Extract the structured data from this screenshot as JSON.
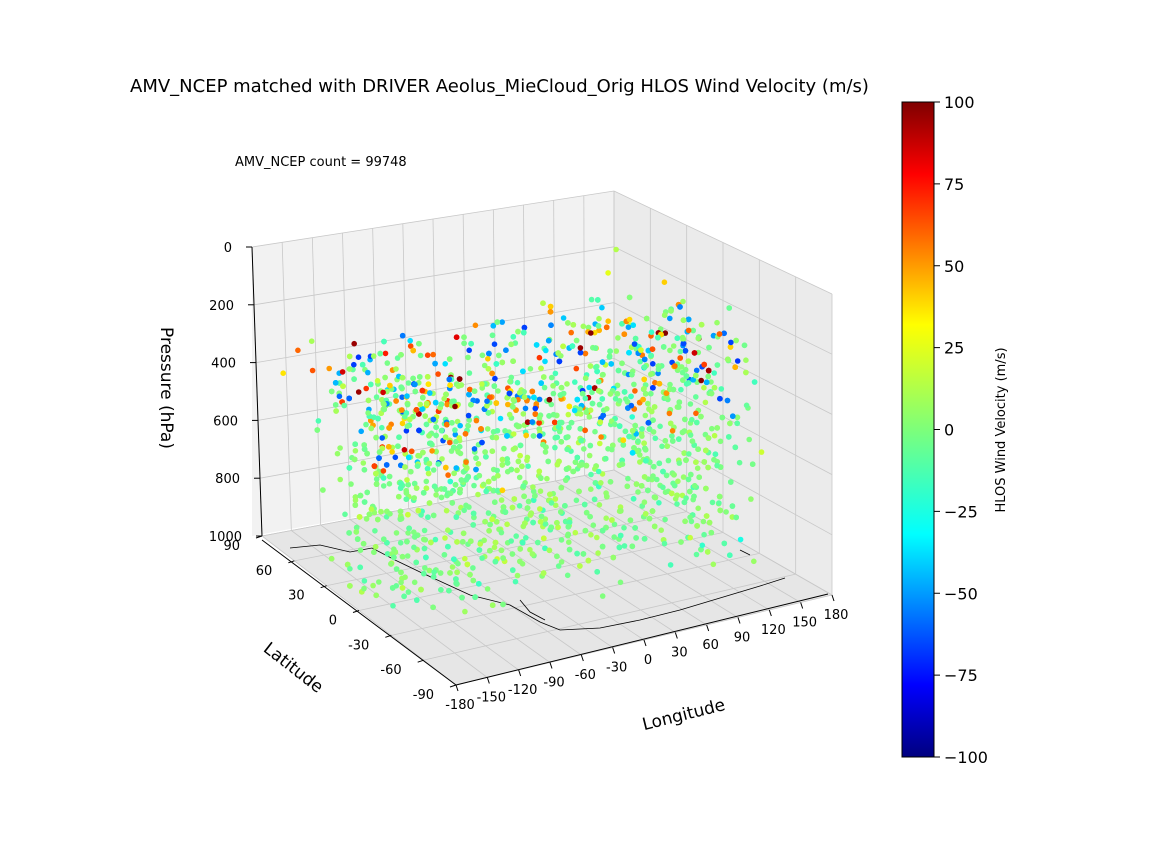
{
  "chart_data": {
    "type": "scatter",
    "title": "AMV_NCEP matched with DRIVER Aeolus_MieCloud_Orig HLOS Wind Velocity (m/s)",
    "annotation": "AMV_NCEP count = 99748",
    "count": 99748,
    "xlabel": "Longitude",
    "ylabel": "Latitude",
    "zlabel": "Pressure (hPa)",
    "xlim": [
      -180,
      180
    ],
    "ylim": [
      -90,
      90
    ],
    "zlim": [
      1000,
      0
    ],
    "x_ticks": [
      "-180",
      "-150",
      "-120",
      "-90",
      "-60",
      "-30",
      "0",
      "30",
      "60",
      "90",
      "120",
      "150",
      "180"
    ],
    "y_ticks": [
      "-90",
      "-60",
      "-30",
      "0",
      "30",
      "60",
      "90"
    ],
    "z_ticks": [
      "0",
      "200",
      "400",
      "600",
      "800",
      "1000"
    ],
    "grid": true,
    "colorbar": {
      "label": "HLOS Wind Velocity (m/s)",
      "range": [
        -100,
        100
      ],
      "ticks": [
        "100",
        "75",
        "50",
        "25",
        "0",
        "−25",
        "−50",
        "−75",
        "−100"
      ],
      "colormap": "jet"
    },
    "sample_points": [
      {
        "lon": -170,
        "lat": 75,
        "p": 380,
        "v": 30
      },
      {
        "lon": -160,
        "lat": 70,
        "p": 290,
        "v": 55
      },
      {
        "lon": -140,
        "lat": 60,
        "p": 340,
        "v": 45
      },
      {
        "lon": -120,
        "lat": 55,
        "p": 250,
        "v": 95
      },
      {
        "lon": -110,
        "lat": 50,
        "p": 300,
        "v": -40
      },
      {
        "lon": -100,
        "lat": 45,
        "p": 270,
        "v": 70
      },
      {
        "lon": -90,
        "lat": 40,
        "p": 420,
        "v": -55
      },
      {
        "lon": -75,
        "lat": 45,
        "p": 260,
        "v": 60
      },
      {
        "lon": -60,
        "lat": 20,
        "p": 520,
        "v": -45
      },
      {
        "lon": -50,
        "lat": 10,
        "p": 450,
        "v": 50
      },
      {
        "lon": -30,
        "lat": 0,
        "p": 380,
        "v": 40
      },
      {
        "lon": -10,
        "lat": -10,
        "p": 350,
        "v": -50
      },
      {
        "lon": 0,
        "lat": -20,
        "p": 330,
        "v": 45
      },
      {
        "lon": 30,
        "lat": 20,
        "p": 280,
        "v": -30
      },
      {
        "lon": 60,
        "lat": -30,
        "p": 320,
        "v": 55
      },
      {
        "lon": 90,
        "lat": 30,
        "p": 250,
        "v": -40
      },
      {
        "lon": 120,
        "lat": 50,
        "p": 260,
        "v": -35
      },
      {
        "lon": 150,
        "lat": 70,
        "p": 200,
        "v": 20
      },
      {
        "lon": 170,
        "lat": 80,
        "p": 150,
        "v": 10
      },
      {
        "lon": -150,
        "lat": -60,
        "p": 700,
        "v": 5
      },
      {
        "lon": -90,
        "lat": -60,
        "p": 800,
        "v": -10
      },
      {
        "lon": 0,
        "lat": -70,
        "p": 850,
        "v": 0
      },
      {
        "lon": 90,
        "lat": -60,
        "p": 820,
        "v": -15
      },
      {
        "lon": 150,
        "lat": -40,
        "p": 900,
        "v": -20
      }
    ]
  }
}
